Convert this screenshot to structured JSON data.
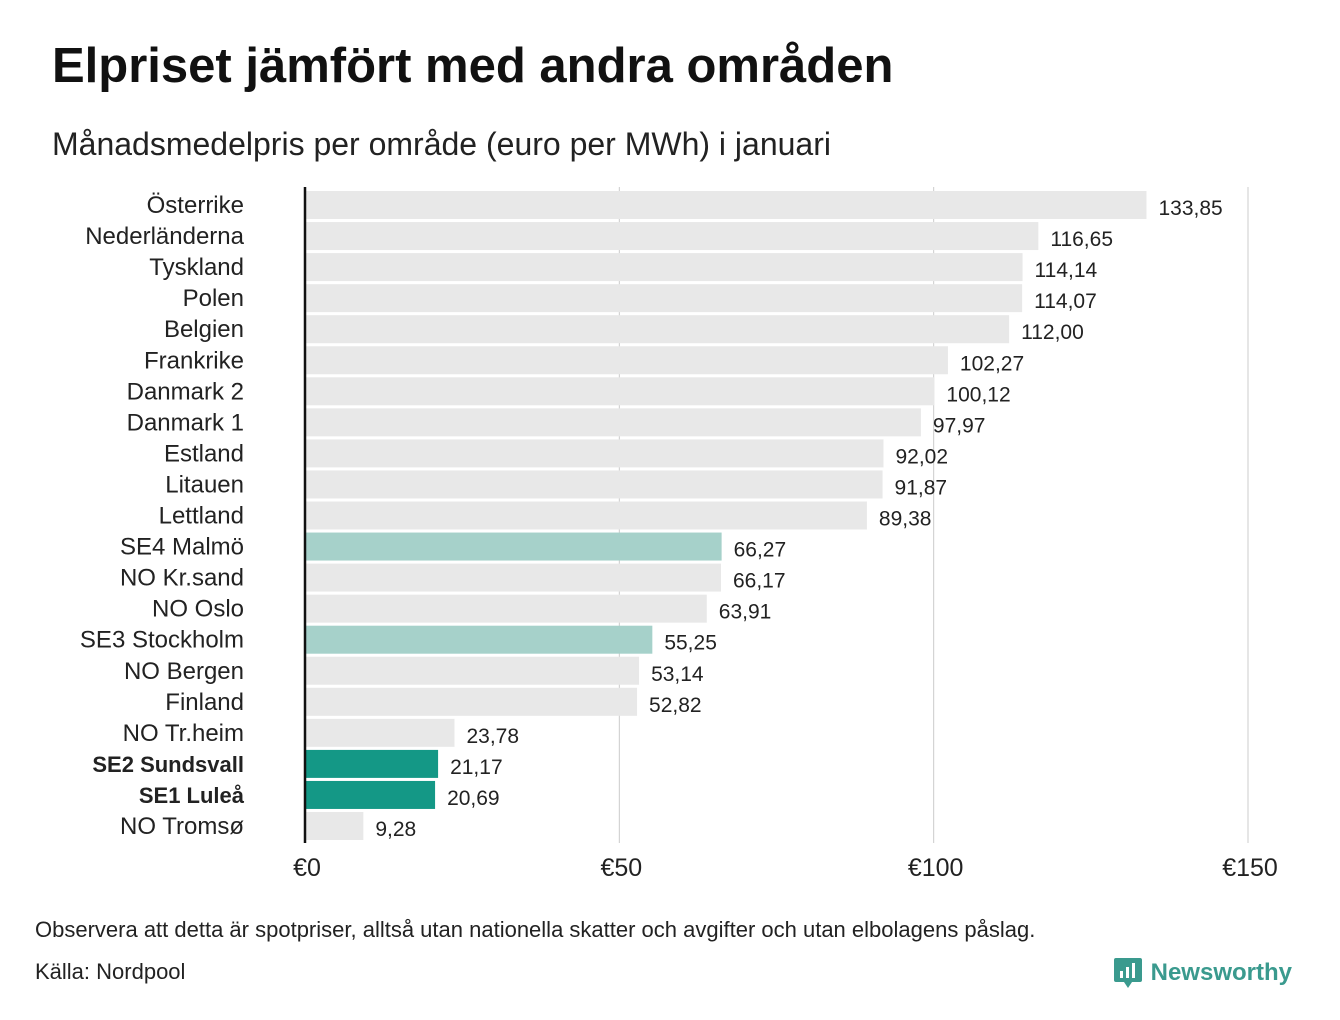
{
  "title": "Elpriset jämfört med andra områden",
  "subtitle": "Månadsmedelpris per område (euro per MWh) i januari",
  "note": "Observera att detta är spotpriser, alltså utan nationella skatter och avgifter och utan elbolagens påslag.",
  "source": "Källa: Nordpool",
  "brand": {
    "name": "Newsworthy",
    "icon": "newsworthy-logo-icon"
  },
  "colors": {
    "default_bar": "#e8e8e8",
    "light_highlight": "#a6d1ca",
    "strong_highlight": "#149886",
    "gridline": "#cccccc",
    "axis": "#111111"
  },
  "chart_data": {
    "type": "bar",
    "orientation": "horizontal",
    "xlim": [
      0,
      150
    ],
    "xticks": [
      0,
      50,
      100,
      150
    ],
    "xtick_labels": [
      "€0",
      "€50",
      "€100",
      "€150"
    ],
    "grid": true,
    "categories": [
      "Österrike",
      "Nederländerna",
      "Tyskland",
      "Polen",
      "Belgien",
      "Frankrike",
      "Danmark  2",
      "Danmark  1",
      "Estland",
      "Litauen",
      "Lettland",
      "SE4  Malmö",
      "NO Kr.sand",
      "NO Oslo",
      "SE3  Stockholm",
      "NO Bergen",
      "Finland",
      "NO Tr.heim",
      "SE2 Sundsvall",
      "SE1 Luleå",
      "NO Tromsø"
    ],
    "values": [
      133.85,
      116.65,
      114.14,
      114.07,
      112.0,
      102.27,
      100.12,
      97.97,
      92.02,
      91.87,
      89.38,
      66.27,
      66.17,
      63.91,
      55.25,
      53.14,
      52.82,
      23.78,
      21.17,
      20.69,
      9.28
    ],
    "value_labels": [
      "133,85",
      "116,65",
      "114,14",
      "114,07",
      "112,00",
      "102,27",
      "100,12",
      "97,97",
      "92,02",
      "91,87",
      "89,38",
      "66,27",
      "66,17",
      "63,91",
      "55,25",
      "53,14",
      "52,82",
      "23,78",
      "21,17",
      "20,69",
      "9,28"
    ],
    "highlight": [
      "none",
      "none",
      "none",
      "none",
      "none",
      "none",
      "none",
      "none",
      "none",
      "none",
      "none",
      "light",
      "none",
      "none",
      "light",
      "none",
      "none",
      "none",
      "strong",
      "strong",
      "none"
    ],
    "bold_labels": [
      "SE2 Sundsvall",
      "SE1 Luleå"
    ]
  }
}
